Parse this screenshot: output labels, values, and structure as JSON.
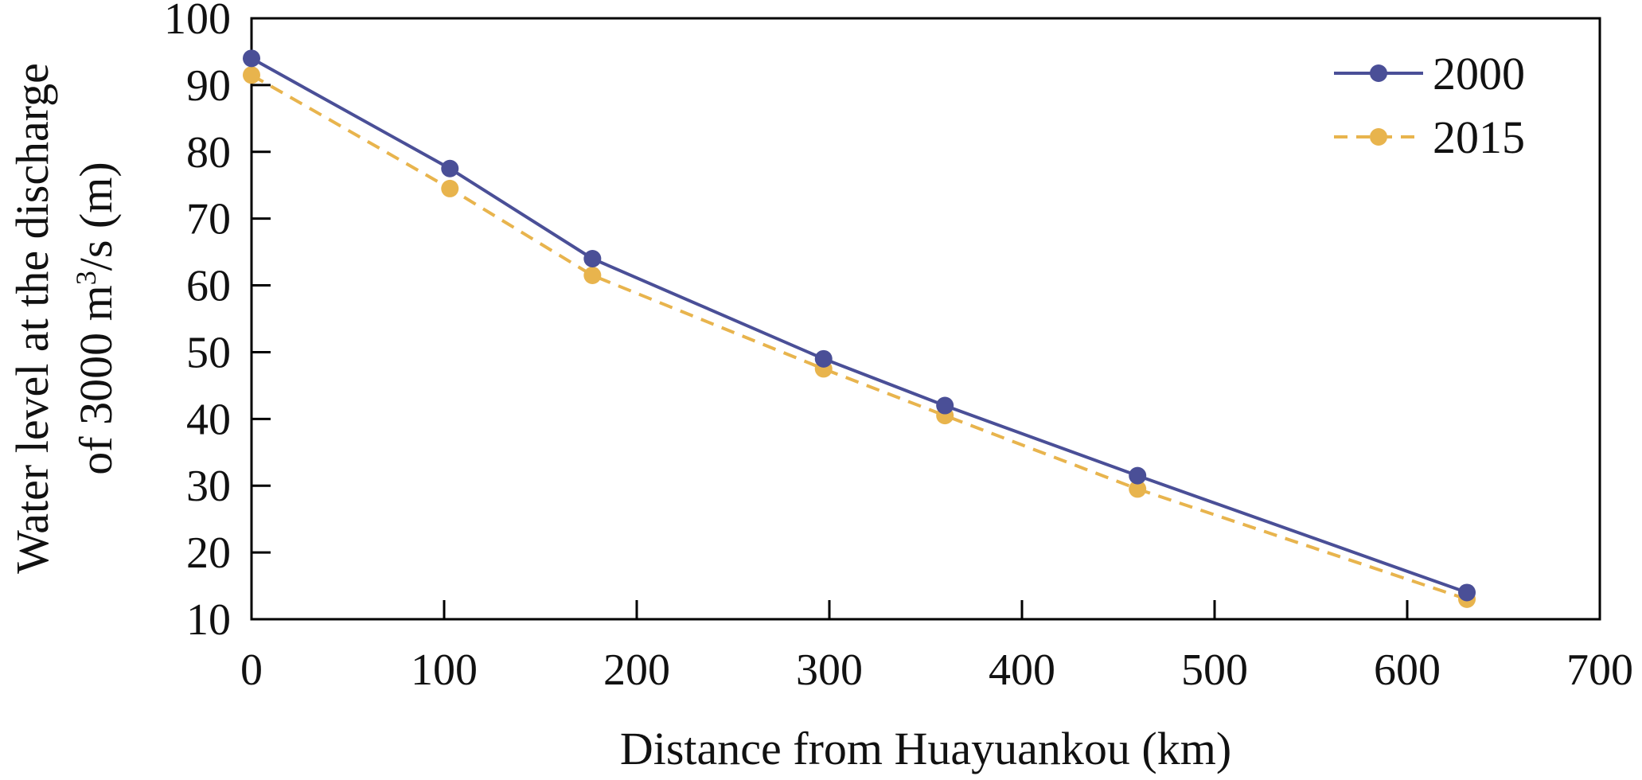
{
  "chart_data": {
    "type": "line",
    "title": "",
    "xlabel": "Distance from Huayuankou (km)",
    "ylabel": {
      "line1": "Water level at the discharge",
      "line2_before_superscript": "of 3000 m",
      "superscript": "3",
      "line2_after_superscript": "/s (m)"
    },
    "xlim": [
      0,
      700
    ],
    "ylim": [
      10,
      100
    ],
    "xticks": [
      {
        "value": 0,
        "label": "0"
      },
      {
        "value": 100,
        "label": "100"
      },
      {
        "value": 200,
        "label": "200"
      },
      {
        "value": 300,
        "label": "300"
      },
      {
        "value": 400,
        "label": "400"
      },
      {
        "value": 500,
        "label": "500"
      },
      {
        "value": 600,
        "label": "600"
      },
      {
        "value": 700,
        "label": "700"
      }
    ],
    "yticks": [
      {
        "value": 10,
        "label": "10"
      },
      {
        "value": 20,
        "label": "20"
      },
      {
        "value": 30,
        "label": "30"
      },
      {
        "value": 40,
        "label": "40"
      },
      {
        "value": 50,
        "label": "50"
      },
      {
        "value": 60,
        "label": "60"
      },
      {
        "value": 70,
        "label": "70"
      },
      {
        "value": 80,
        "label": "80"
      },
      {
        "value": 90,
        "label": "90"
      },
      {
        "value": 100,
        "label": "100"
      }
    ],
    "grid": false,
    "legend_position": "top-right",
    "series": [
      {
        "name": "2000",
        "color": "#4a4f97",
        "line_style": "solid",
        "marker": "circle",
        "x": [
          0,
          103,
          177,
          297,
          360,
          460,
          631
        ],
        "y": [
          94.0,
          77.5,
          64.0,
          49.0,
          42.0,
          31.5,
          14.0
        ]
      },
      {
        "name": "2015",
        "color": "#e8b44d",
        "line_style": "dashed",
        "marker": "circle",
        "x": [
          0,
          103,
          177,
          297,
          360,
          460,
          631
        ],
        "y": [
          91.5,
          74.5,
          61.5,
          47.5,
          40.5,
          29.5,
          13.0
        ]
      }
    ]
  }
}
